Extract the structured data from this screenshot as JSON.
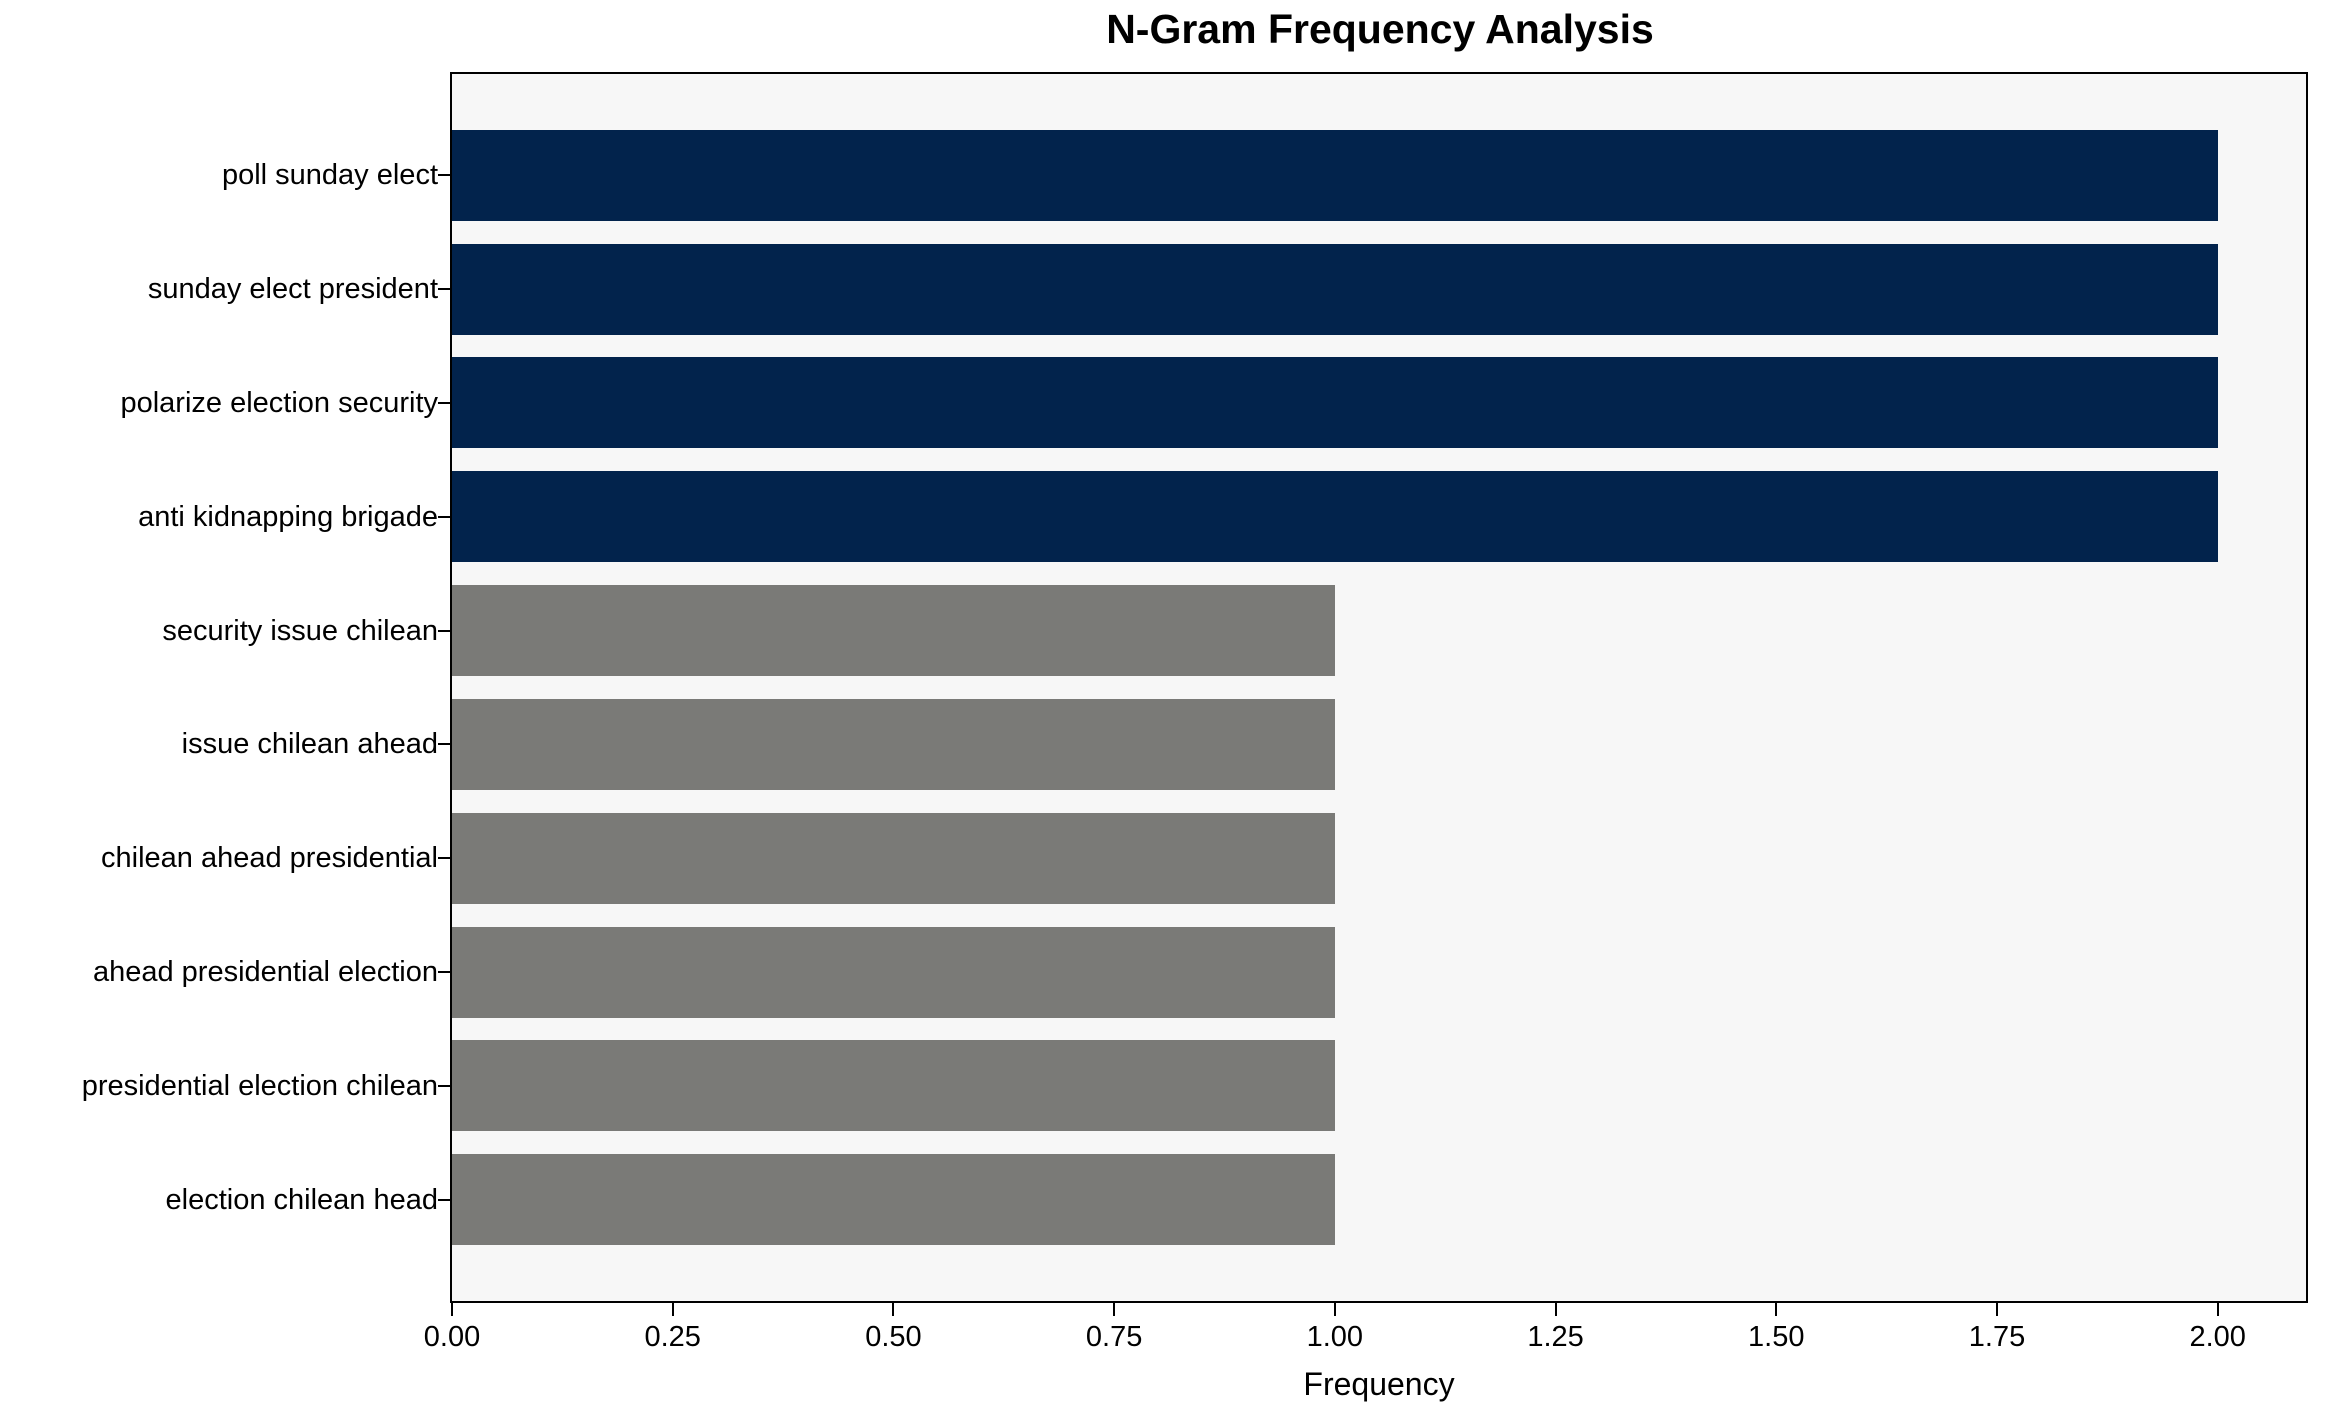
{
  "chart_data": {
    "type": "bar",
    "orientation": "horizontal",
    "title": "N-Gram Frequency Analysis",
    "xlabel": "Frequency",
    "ylabel": "",
    "categories": [
      "poll sunday elect",
      "sunday elect president",
      "polarize election security",
      "anti kidnapping brigade",
      "security issue chilean",
      "issue chilean ahead",
      "chilean ahead presidential",
      "ahead presidential election",
      "presidential election chilean",
      "election chilean head"
    ],
    "values": [
      2,
      2,
      2,
      2,
      1,
      1,
      1,
      1,
      1,
      1
    ],
    "bar_colors": [
      "#02234c",
      "#02234c",
      "#02234c",
      "#02234c",
      "#7a7a77",
      "#7a7a77",
      "#7a7a77",
      "#7a7a77",
      "#7a7a77",
      "#7a7a77"
    ],
    "xlim": [
      0,
      2.1
    ],
    "xticks": [
      0,
      0.25,
      0.5,
      0.75,
      1,
      1.25,
      1.5,
      1.75,
      2
    ],
    "xtick_labels": [
      "0.00",
      "0.25",
      "0.50",
      "0.75",
      "1.00",
      "1.25",
      "1.50",
      "1.75",
      "2.00"
    ],
    "grid": false,
    "legend": "none",
    "colors": {
      "highlight_bar": "#02234c",
      "default_bar": "#7a7a77",
      "plot_background": "#f7f7f7",
      "figure_background": "#ffffff",
      "frame": "#000000",
      "text": "#000000"
    }
  }
}
